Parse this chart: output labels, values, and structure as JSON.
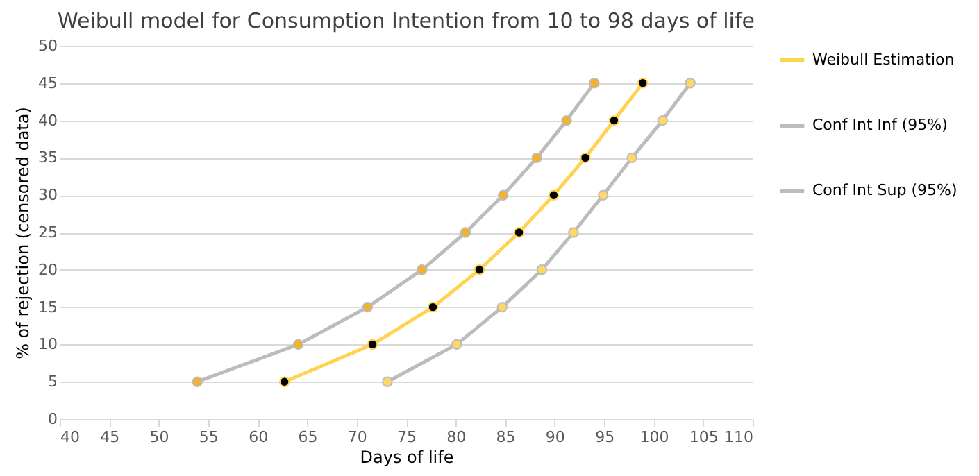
{
  "chart_data": {
    "type": "line",
    "title": "Weibull model for Consumption Intention from 10 to 98 days of life",
    "xlabel": "Days of life",
    "ylabel": "% of rejection (censored data)",
    "xlim": [
      40,
      110
    ],
    "xticks": [
      40,
      45,
      50,
      55,
      60,
      65,
      70,
      75,
      80,
      85,
      90,
      95,
      100,
      105,
      110
    ],
    "ylim": [
      0,
      50
    ],
    "yticks": [
      0,
      5,
      10,
      15,
      20,
      25,
      30,
      35,
      40,
      45,
      50
    ],
    "grid": "y",
    "legend": "right",
    "marker": "circle",
    "line_style": "solid",
    "series": [
      {
        "name": "Weibull Estimation",
        "color": "#ffd34f",
        "colors": [
          "#000000",
          "#000000",
          "#000000",
          "#000000",
          "#000000",
          "#000000",
          "#000000",
          "#000000",
          "#000000"
        ],
        "x": [
          62.7,
          71.6,
          77.7,
          82.4,
          86.4,
          89.9,
          93.1,
          96.0,
          98.9
        ],
        "values": [
          5,
          10,
          15,
          20,
          25,
          30,
          35,
          40,
          45
        ]
      },
      {
        "name": "Conf Int Inf (95%)",
        "color": "#bcbcbc",
        "colors": [
          "#f2b230",
          "#f2b230",
          "#f2b230",
          "#f2b230",
          "#f2b230",
          "#f2b230",
          "#f2b230",
          "#f2b230",
          "#f2b230"
        ],
        "x": [
          53.9,
          64.1,
          71.1,
          76.6,
          81.0,
          84.8,
          88.2,
          91.2,
          94.0
        ],
        "values": [
          5,
          10,
          15,
          20,
          25,
          30,
          35,
          40,
          45
        ]
      },
      {
        "name": "Conf Int Sup (95%)",
        "color": "#bcbcbc",
        "colors": [
          "#ffd766",
          "#ffd766",
          "#ffd766",
          "#ffd766",
          "#ffd766",
          "#ffd766",
          "#ffd766",
          "#ffd766",
          "#ffd766"
        ],
        "x": [
          73.1,
          80.1,
          84.7,
          88.7,
          91.9,
          94.9,
          97.8,
          100.9,
          103.7
        ],
        "values": [
          5,
          10,
          15,
          20,
          25,
          30,
          35,
          40,
          45
        ]
      }
    ]
  }
}
